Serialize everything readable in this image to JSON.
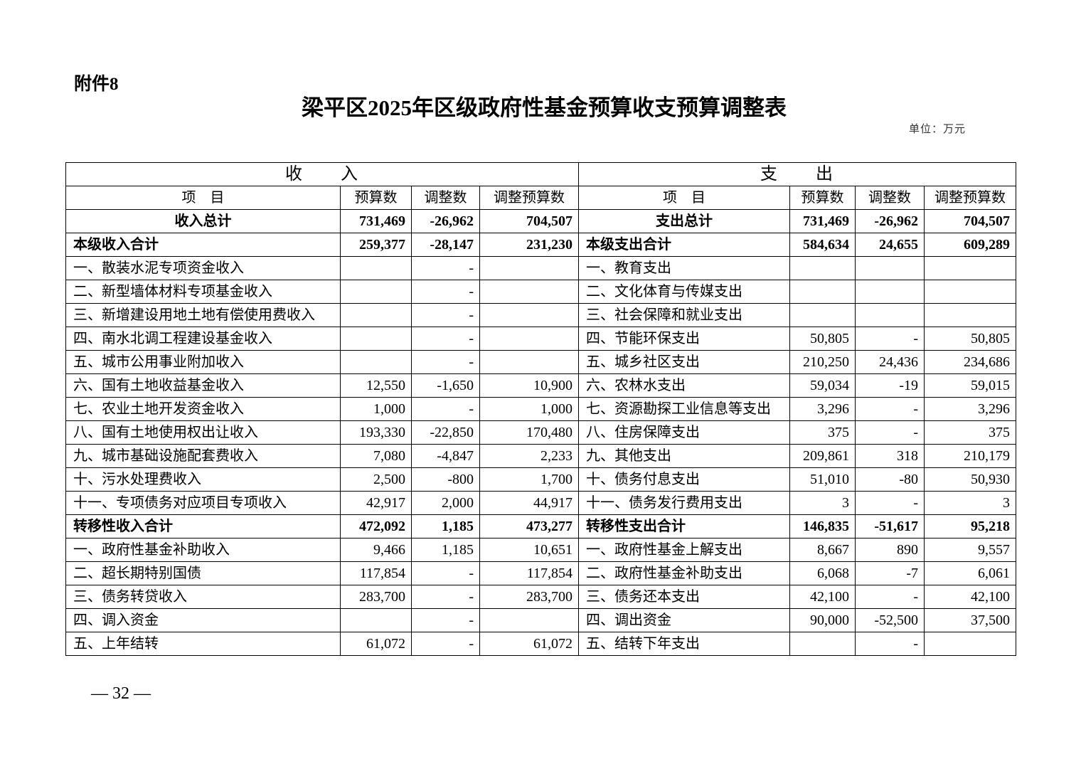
{
  "attachment": "附件8",
  "title": "梁平区2025年区级政府性基金预算收支预算调整表",
  "unit": "单位：万元",
  "section_headers": {
    "income": "收　　入",
    "expense": "支　　出"
  },
  "column_headers": [
    "项　目",
    "预算数",
    "调整数",
    "调整预算数",
    "项　目",
    "预算数",
    "调整数",
    "调整预算数"
  ],
  "rows": [
    {
      "bold": true,
      "center": true,
      "cells": [
        "收入总计",
        "731,469",
        "-26,962",
        "704,507",
        "支出总计",
        "731,469",
        "-26,962",
        "704,507"
      ]
    },
    {
      "bold": true,
      "cells": [
        "本级收入合计",
        "259,377",
        "-28,147",
        "231,230",
        "本级支出合计",
        "584,634",
        "24,655",
        "609,289"
      ]
    },
    {
      "cells": [
        "一、散装水泥专项资金收入",
        "",
        "-",
        "",
        "一、教育支出",
        "",
        "",
        ""
      ]
    },
    {
      "cells": [
        "二、新型墙体材料专项基金收入",
        "",
        "-",
        "",
        "二、文化体育与传媒支出",
        "",
        "",
        ""
      ]
    },
    {
      "cells": [
        "三、新增建设用地土地有偿使用费收入",
        "",
        "-",
        "",
        "三、社会保障和就业支出",
        "",
        "",
        ""
      ]
    },
    {
      "cells": [
        "四、南水北调工程建设基金收入",
        "",
        "-",
        "",
        "四、节能环保支出",
        "50,805",
        "-",
        "50,805"
      ]
    },
    {
      "cells": [
        "五、城市公用事业附加收入",
        "",
        "-",
        "",
        "五、城乡社区支出",
        "210,250",
        "24,436",
        "234,686"
      ]
    },
    {
      "cells": [
        "六、国有土地收益基金收入",
        "12,550",
        "-1,650",
        "10,900",
        "六、农林水支出",
        "59,034",
        "-19",
        "59,015"
      ]
    },
    {
      "cells": [
        "七、农业土地开发资金收入",
        "1,000",
        "-",
        "1,000",
        "七、资源勘探工业信息等支出",
        "3,296",
        "-",
        "3,296"
      ]
    },
    {
      "cells": [
        "八、国有土地使用权出让收入",
        "193,330",
        "-22,850",
        "170,480",
        "八、住房保障支出",
        "375",
        "-",
        "375"
      ]
    },
    {
      "cells": [
        "九、城市基础设施配套费收入",
        "7,080",
        "-4,847",
        "2,233",
        "九、其他支出",
        "209,861",
        "318",
        "210,179"
      ]
    },
    {
      "cells": [
        "十、污水处理费收入",
        "2,500",
        "-800",
        "1,700",
        "十、债务付息支出",
        "51,010",
        "-80",
        "50,930"
      ]
    },
    {
      "cells": [
        "十一、专项债务对应项目专项收入",
        "42,917",
        "2,000",
        "44,917",
        "十一、债务发行费用支出",
        "3",
        "-",
        "3"
      ]
    },
    {
      "bold": true,
      "cells": [
        "转移性收入合计",
        "472,092",
        "1,185",
        "473,277",
        "转移性支出合计",
        "146,835",
        "-51,617",
        "95,218"
      ]
    },
    {
      "cells": [
        "一、政府性基金补助收入",
        "9,466",
        "1,185",
        "10,651",
        "一、政府性基金上解支出",
        "8,667",
        "890",
        "9,557"
      ]
    },
    {
      "cells": [
        "二、超长期特别国债",
        "117,854",
        "-",
        "117,854",
        "二、政府性基金补助支出",
        "6,068",
        "-7",
        "6,061"
      ]
    },
    {
      "cells": [
        "三、债务转贷收入",
        "283,700",
        "-",
        "283,700",
        "三、债务还本支出",
        "42,100",
        "-",
        "42,100"
      ]
    },
    {
      "cells": [
        "四、调入资金",
        "",
        "-",
        "",
        "四、调出资金",
        "90,000",
        "-52,500",
        "37,500"
      ]
    },
    {
      "cells": [
        "五、上年结转",
        "61,072",
        "-",
        "61,072",
        "五、结转下年支出",
        "",
        "-",
        ""
      ]
    }
  ],
  "page_number": "— 32 —"
}
